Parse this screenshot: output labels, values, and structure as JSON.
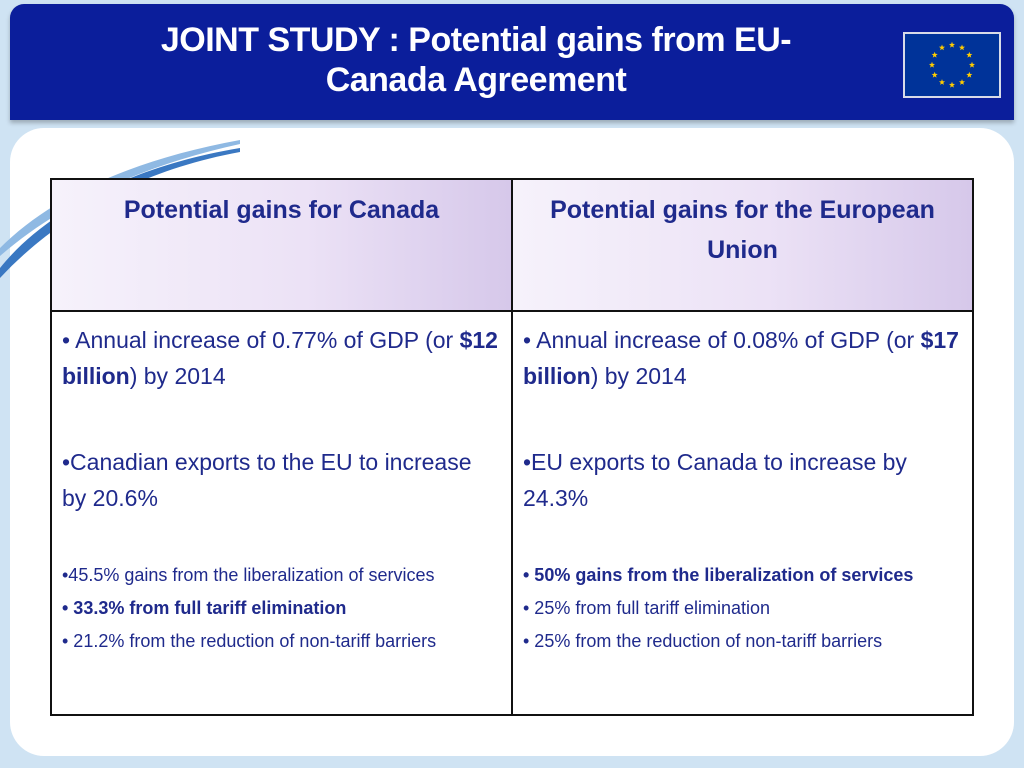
{
  "header": {
    "title": "JOINT STUDY : Potential gains from EU-Canada Agreement"
  },
  "flag": {
    "name": "EU flag",
    "stars": 12,
    "star_color": "#ffcc00",
    "field_color": "#003399"
  },
  "table": {
    "columns": [
      {
        "header": "Potential gains for Canada",
        "point1": {
          "prefix": "•  Annual increase of 0.77% of GDP (or ",
          "bold": "$12 billion",
          "suffix": ") by 2014"
        },
        "point2": "•Canadian exports to the EU to increase by 20.6%",
        "sub1": "•45.5% gains from the liberalization of services",
        "sub2": "• 33.3% from full tariff elimination",
        "sub3": "• 21.2% from the reduction of non-tariff barriers"
      },
      {
        "header": "Potential gains for the European Union",
        "point1": {
          "prefix": "•  Annual increase of 0.08% of GDP (or ",
          "bold": "$17 billion",
          "suffix": ") by 2014"
        },
        "point2": "•EU exports to Canada to increase by 24.3%",
        "sub1": "• 50% gains from the liberalization of services",
        "sub2": "• 25% from full tariff elimination",
        "sub3": "• 25% from the reduction of non-tariff barriers"
      }
    ]
  },
  "colors": {
    "header_bg": "#0b1e9b",
    "text": "#1f2a8c",
    "header_cell_tint": "#d6c8ea"
  }
}
